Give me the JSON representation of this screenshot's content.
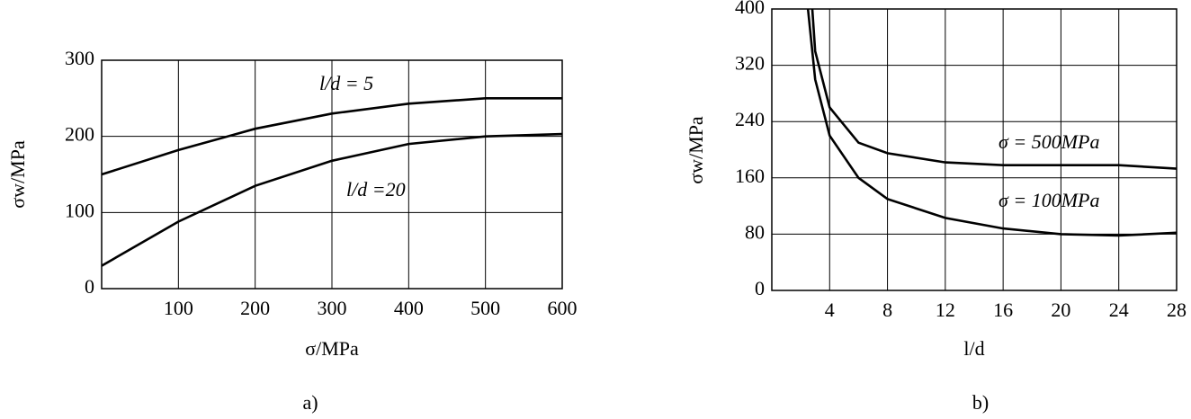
{
  "chart_data": [
    {
      "type": "line",
      "panel_label": "a)",
      "x_label": "σ/MPa",
      "y_label": "σw/MPa",
      "x": [
        0,
        100,
        200,
        300,
        400,
        500,
        600
      ],
      "xlim": [
        0,
        600
      ],
      "xticks": [
        100,
        200,
        300,
        400,
        500,
        600
      ],
      "ylim": [
        0,
        300
      ],
      "yticks": [
        0,
        100,
        200,
        300
      ],
      "grid": true,
      "series": [
        {
          "name": "l/d = 5",
          "color": "#000000",
          "values": [
            150,
            182,
            210,
            230,
            243,
            250,
            250
          ]
        },
        {
          "name": "l/d =20",
          "color": "#000000",
          "values": [
            30,
            88,
            135,
            168,
            190,
            200,
            203
          ]
        }
      ]
    },
    {
      "type": "line",
      "panel_label": "b)",
      "x_label": "l/d",
      "y_label": "σw/MPa",
      "xlim": [
        0,
        28
      ],
      "xticks": [
        4,
        8,
        12,
        16,
        20,
        24,
        28
      ],
      "ylim": [
        0,
        400
      ],
      "yticks": [
        0,
        80,
        160,
        240,
        320,
        400
      ],
      "grid": true,
      "series": [
        {
          "name": "σ = 500MPa",
          "color": "#000000",
          "x": [
            2.8,
            3,
            4,
            6,
            8,
            12,
            16,
            20,
            24,
            28
          ],
          "values": [
            400,
            340,
            260,
            210,
            195,
            182,
            178,
            178,
            178,
            173
          ]
        },
        {
          "name": "σ = 100MPa",
          "color": "#000000",
          "x": [
            2.5,
            3,
            4,
            6,
            8,
            12,
            16,
            20,
            24,
            28
          ],
          "values": [
            400,
            300,
            220,
            160,
            130,
            103,
            88,
            80,
            78,
            82
          ]
        }
      ]
    }
  ]
}
